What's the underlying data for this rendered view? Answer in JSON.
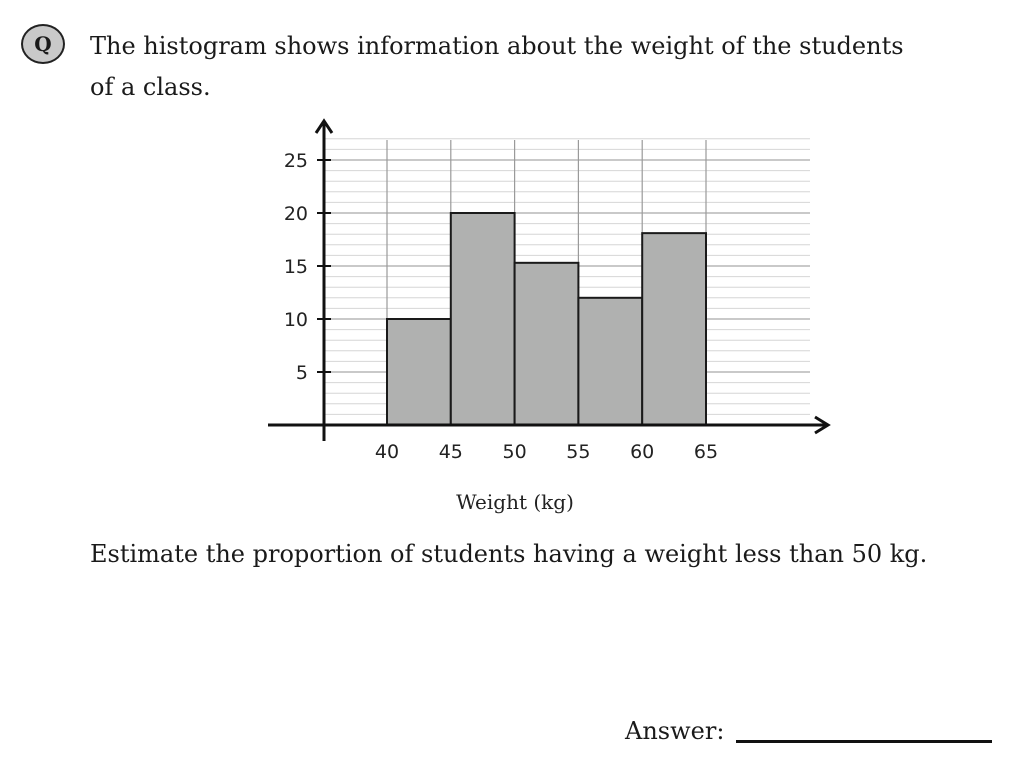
{
  "question": {
    "badge": "Q",
    "text": "The histogram shows information about the weight of the students of a class.",
    "prompt": "Estimate the proportion of students having a weight less than 50 kg.",
    "answer_label": "Answer:"
  },
  "chart_data": {
    "type": "bar",
    "title": "",
    "xlabel": "Weight (kg)",
    "ylabel": "",
    "bins": [
      [
        40,
        45
      ],
      [
        45,
        50
      ],
      [
        50,
        55
      ],
      [
        55,
        60
      ],
      [
        60,
        65
      ]
    ],
    "values": [
      10,
      20,
      15.3,
      12,
      18.1
    ],
    "x_ticks": [
      40,
      45,
      50,
      55,
      60,
      65
    ],
    "y_ticks": [
      5,
      10,
      15,
      20,
      25
    ],
    "xlim": [
      35.2,
      74.5
    ],
    "ylim": [
      0,
      28
    ],
    "grid": true,
    "bar_color": "#b0b1b0",
    "grid_color": "#d6d6d6"
  }
}
